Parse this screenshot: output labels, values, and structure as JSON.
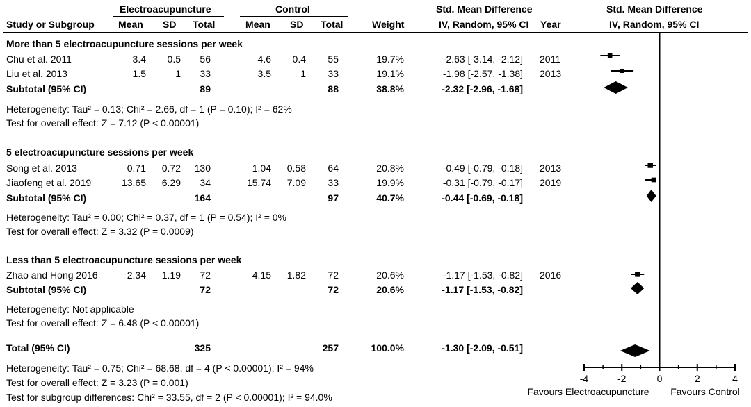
{
  "header": {
    "group1": "Electroacupuncture",
    "group2": "Control",
    "smd_title": "Std. Mean Difference",
    "smd_sub": "IV, Random, 95% CI",
    "plot_title": "Std. Mean Difference",
    "plot_sub": "IV, Random, 95% CI",
    "cols": {
      "study": "Study or Subgroup",
      "mean1": "Mean",
      "sd1": "SD",
      "total1": "Total",
      "mean2": "Mean",
      "sd2": "SD",
      "total2": "Total",
      "weight": "Weight",
      "year": "Year"
    }
  },
  "subgroups": [
    {
      "title": "More than 5 electroacupuncture sessions per week",
      "studies": [
        {
          "name": "Chu et al. 2011",
          "mean1": "3.4",
          "sd1": "0.5",
          "total1": "56",
          "mean2": "4.6",
          "sd2": "0.4",
          "total2": "55",
          "weight": "19.7%",
          "ci": "-2.63 [-3.14, -2.12]",
          "year": "2011"
        },
        {
          "name": "Liu et al. 2013",
          "mean1": "1.5",
          "sd1": "1",
          "total1": "33",
          "mean2": "3.5",
          "sd2": "1",
          "total2": "33",
          "weight": "19.1%",
          "ci": "-1.98 [-2.57, -1.38]",
          "year": "2013"
        }
      ],
      "subtotal": {
        "label": "Subtotal (95% CI)",
        "total1": "89",
        "total2": "88",
        "weight": "38.8%",
        "ci": "-2.32 [-2.96, -1.68]"
      },
      "heterogeneity": "Heterogeneity: Tau² = 0.13; Chi² = 2.66, df = 1 (P = 0.10); I² = 62%",
      "overall": "Test for overall effect: Z = 7.12 (P < 0.00001)"
    },
    {
      "title": "5 electroacupuncture sessions per week",
      "studies": [
        {
          "name": "Song et al. 2013",
          "mean1": "0.71",
          "sd1": "0.72",
          "total1": "130",
          "mean2": "1.04",
          "sd2": "0.58",
          "total2": "64",
          "weight": "20.8%",
          "ci": "-0.49 [-0.79, -0.18]",
          "year": "2013"
        },
        {
          "name": "Jiaofeng et al. 2019",
          "mean1": "13.65",
          "sd1": "6.29",
          "total1": "34",
          "mean2": "15.74",
          "sd2": "7.09",
          "total2": "33",
          "weight": "19.9%",
          "ci": "-0.31 [-0.79, -0.17]",
          "year": "2019"
        }
      ],
      "subtotal": {
        "label": "Subtotal (95% CI)",
        "total1": "164",
        "total2": "97",
        "weight": "40.7%",
        "ci": "-0.44 [-0.69, -0.18]"
      },
      "heterogeneity": "Heterogeneity: Tau² = 0.00; Chi² = 0.37, df = 1 (P = 0.54); I² = 0%",
      "overall": "Test for overall effect: Z = 3.32 (P = 0.0009)"
    },
    {
      "title": "Less than 5 electroacupuncture sessions per week",
      "studies": [
        {
          "name": "Zhao and Hong 2016",
          "mean1": "2.34",
          "sd1": "1.19",
          "total1": "72",
          "mean2": "4.15",
          "sd2": "1.82",
          "total2": "72",
          "weight": "20.6%",
          "ci": "-1.17 [-1.53, -0.82]",
          "year": "2016"
        }
      ],
      "subtotal": {
        "label": "Subtotal (95% CI)",
        "total1": "72",
        "total2": "72",
        "weight": "20.6%",
        "ci": "-1.17 [-1.53, -0.82]"
      },
      "heterogeneity": "Heterogeneity: Not applicable",
      "overall": "Test for overall effect: Z = 6.48 (P < 0.00001)"
    }
  ],
  "total": {
    "label": "Total (95% CI)",
    "total1": "325",
    "total2": "257",
    "weight": "100.0%",
    "ci": "-1.30 [-2.09, -0.51]"
  },
  "footer": [
    "Heterogeneity: Tau² = 0.75; Chi² = 68.68, df = 4 (P < 0.00001); I² = 94%",
    "Test for overall effect: Z = 3.23 (P = 0.001)",
    "Test for subgroup differences: Chi² = 33.55, df = 2 (P < 0.00001); I² = 94.0%"
  ],
  "chart_data": {
    "type": "forest",
    "xlim": [
      -4,
      4
    ],
    "ticks": [
      -4,
      -2,
      0,
      2,
      4
    ],
    "tick_labels": [
      "-4",
      "-2",
      "0",
      "2",
      "4"
    ],
    "favours_left": "Favours Electroacupuncture",
    "favours_right": "Favours Control",
    "studies": [
      {
        "name": "Chu et al. 2011",
        "est": -2.63,
        "lo": -3.14,
        "hi": -2.12,
        "weight": 19.7
      },
      {
        "name": "Liu et al. 2013",
        "est": -1.98,
        "lo": -2.57,
        "hi": -1.38,
        "weight": 19.1
      },
      {
        "name": "Song et al. 2013",
        "est": -0.49,
        "lo": -0.79,
        "hi": -0.18,
        "weight": 20.8
      },
      {
        "name": "Jiaofeng et al. 2019",
        "est": -0.31,
        "lo": -0.79,
        "hi": -0.17,
        "weight": 19.9
      },
      {
        "name": "Zhao and Hong 2016",
        "est": -1.17,
        "lo": -1.53,
        "hi": -0.82,
        "weight": 20.6
      }
    ],
    "diamonds": [
      {
        "name": "Subtotal more than 5",
        "est": -2.32,
        "lo": -2.96,
        "hi": -1.68
      },
      {
        "name": "Subtotal 5",
        "est": -0.44,
        "lo": -0.69,
        "hi": -0.18
      },
      {
        "name": "Subtotal less than 5",
        "est": -1.17,
        "lo": -1.53,
        "hi": -0.82
      },
      {
        "name": "Total",
        "est": -1.3,
        "lo": -2.09,
        "hi": -0.51
      }
    ]
  }
}
